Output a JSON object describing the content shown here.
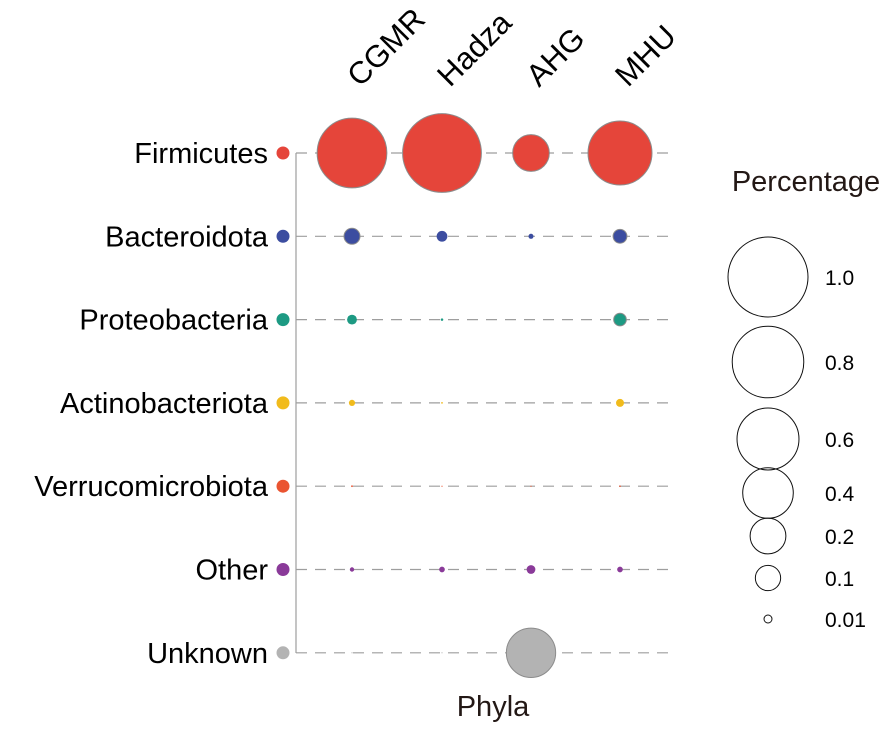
{
  "chart_data": {
    "type": "scatter",
    "subtype": "bubble-matrix",
    "xlabel": "Phyla",
    "columns": [
      "CGMR",
      "Hadza",
      "AHG",
      "MHU"
    ],
    "rows": [
      {
        "name": "Firmicutes",
        "color": "#e5453a",
        "values": [
          0.76,
          0.97,
          0.21,
          0.64
        ]
      },
      {
        "name": "Bacteroidota",
        "color": "#3c4da0",
        "values": [
          0.04,
          0.018,
          0.004,
          0.03
        ]
      },
      {
        "name": "Proteobacteria",
        "color": "#1d9a83",
        "values": [
          0.015,
          0.001,
          0.0,
          0.025
        ]
      },
      {
        "name": "Actinobacteriota",
        "color": "#f1bb1c",
        "values": [
          0.006,
          0.0005,
          0.0,
          0.01
        ]
      },
      {
        "name": "Verrucomicrobiota",
        "color": "#ea5431",
        "values": [
          0.0005,
          0.0002,
          0.0002,
          0.0004
        ]
      },
      {
        "name": "Other",
        "color": "#8a3a99",
        "values": [
          0.003,
          0.005,
          0.012,
          0.005
        ]
      },
      {
        "name": "Unknown",
        "color": "#b3b3b3",
        "values": [
          0.0001,
          0.0001,
          0.38,
          0.0
        ]
      }
    ],
    "size_legend": {
      "title": "Percentage",
      "levels": [
        {
          "label": "1.0",
          "value": 1.0
        },
        {
          "label": "0.8",
          "value": 0.8
        },
        {
          "label": "0.6",
          "value": 0.6
        },
        {
          "label": "0.4",
          "value": 0.4
        },
        {
          "label": "0.2",
          "value": 0.2
        },
        {
          "label": "0.1",
          "value": 0.1
        },
        {
          "label": "0.01",
          "value": 0.01
        }
      ]
    },
    "grid": "dashed horizontal row lines",
    "legend_position": "right"
  }
}
